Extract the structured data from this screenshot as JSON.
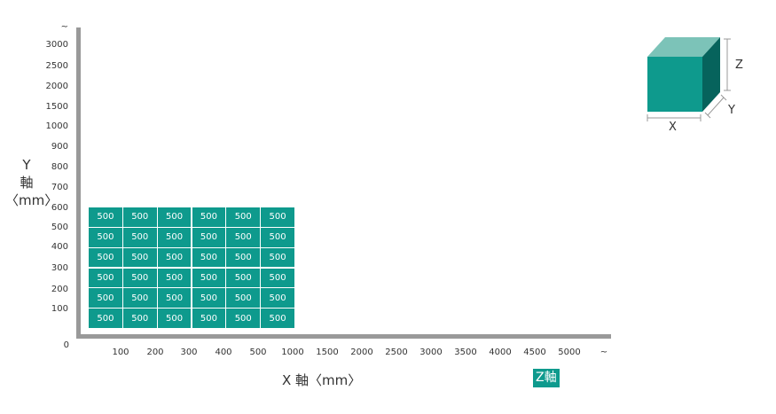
{
  "chart_data": {
    "type": "heatmap",
    "y_axis": {
      "label_line1": "Y",
      "label_line2": "軸",
      "label_line3": "〈mm〉",
      "tick_labels": [
        "~",
        "3000",
        "2500",
        "2000",
        "1500",
        "1000",
        "900",
        "800",
        "700",
        "600",
        "500",
        "400",
        "300",
        "200",
        "100"
      ],
      "origin_label": "0"
    },
    "x_axis": {
      "label": "X 軸〈mm〉",
      "tick_labels": [
        "100",
        "200",
        "300",
        "400",
        "500",
        "1000",
        "1500",
        "2000",
        "2500",
        "3000",
        "3500",
        "4000",
        "4500",
        "5000",
        "~"
      ]
    },
    "z_axis_badge": "Z軸",
    "grid": {
      "x_categories": [
        "100",
        "200",
        "300",
        "400",
        "500",
        "1000"
      ],
      "y_categories": [
        "600",
        "500",
        "400",
        "300",
        "200",
        "100"
      ],
      "values": [
        [
          500,
          500,
          500,
          500,
          500,
          500
        ],
        [
          500,
          500,
          500,
          500,
          500,
          500
        ],
        [
          500,
          500,
          500,
          500,
          500,
          500
        ],
        [
          500,
          500,
          500,
          500,
          500,
          500
        ],
        [
          500,
          500,
          500,
          500,
          500,
          500
        ],
        [
          500,
          500,
          500,
          500,
          500,
          500
        ]
      ]
    },
    "cell_color": "#0e9a8d",
    "cube_legend": {
      "x": "X",
      "y": "Y",
      "z": "Z"
    }
  }
}
